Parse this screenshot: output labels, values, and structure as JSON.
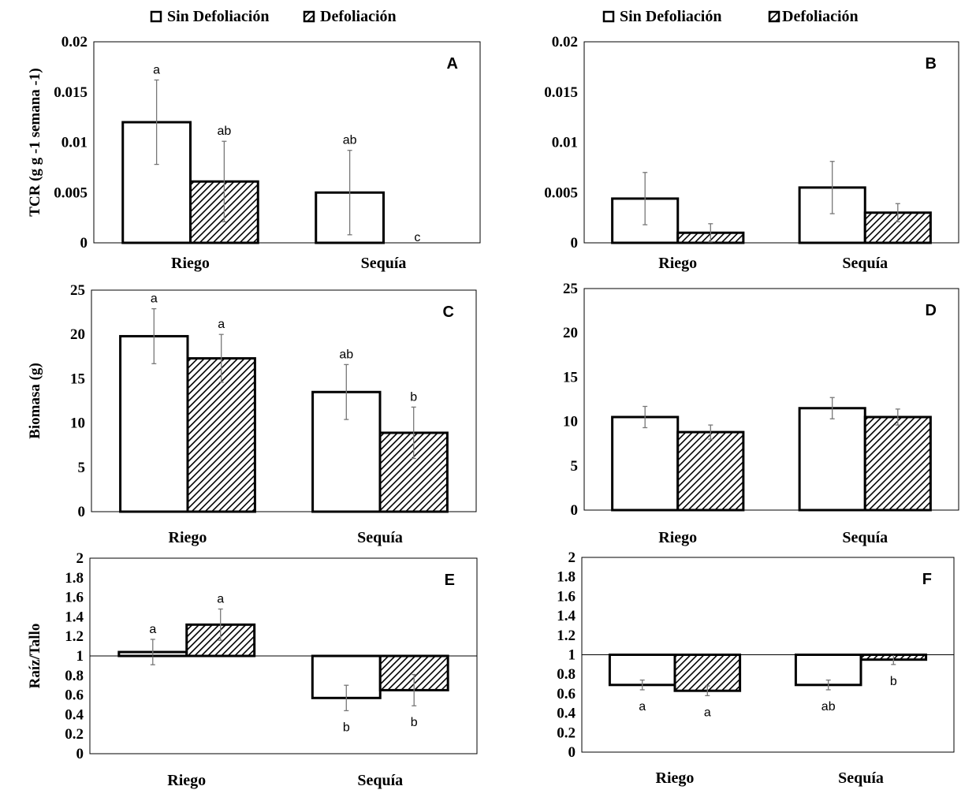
{
  "legend": {
    "series": [
      "Sin Defoliación",
      "Defoliación"
    ]
  },
  "chart_data": [
    {
      "panel": "A",
      "type": "bar",
      "categories": [
        "Riego",
        "Sequía"
      ],
      "ylabel": "TCR (g g -1 semana -1)",
      "ylim": [
        0,
        0.02
      ],
      "ticks": [
        "0",
        "0.005",
        "0.01",
        "0.015",
        "0.02"
      ],
      "baseline": 0,
      "series": [
        {
          "name": "Sin Defoliación",
          "values": [
            0.012,
            0.005
          ],
          "errors": [
            0.0042,
            0.0042
          ],
          "letters": [
            "a",
            "ab"
          ]
        },
        {
          "name": "Defoliación",
          "values": [
            0.0061,
            0
          ],
          "errors": [
            0.004,
            0
          ],
          "letters": [
            "ab",
            "c"
          ]
        }
      ]
    },
    {
      "panel": "B",
      "type": "bar",
      "categories": [
        "Riego",
        "Sequía"
      ],
      "ylabel": "",
      "ylim": [
        0,
        0.02
      ],
      "ticks": [
        "0",
        "0.005",
        "0.01",
        "0.015",
        "0.02"
      ],
      "baseline": 0,
      "series": [
        {
          "name": "Sin Defoliación",
          "values": [
            0.0044,
            0.0055
          ],
          "errors": [
            0.0026,
            0.0026
          ],
          "letters": [
            "",
            ""
          ]
        },
        {
          "name": "Defoliación",
          "values": [
            0.001,
            0.003
          ],
          "errors": [
            0.0009,
            0.0009
          ],
          "letters": [
            "",
            ""
          ]
        }
      ]
    },
    {
      "panel": "C",
      "type": "bar",
      "categories": [
        "Riego",
        "Sequía"
      ],
      "ylabel": "Biomasa (g)",
      "ylim": [
        0,
        25
      ],
      "ticks": [
        "0",
        "5",
        "10",
        "15",
        "20",
        "25"
      ],
      "baseline": 0,
      "series": [
        {
          "name": "Sin Defoliación",
          "values": [
            19.8,
            13.5
          ],
          "errors": [
            3.1,
            3.1
          ],
          "letters": [
            "a",
            "ab"
          ]
        },
        {
          "name": "Defoliación",
          "values": [
            17.3,
            8.9
          ],
          "errors": [
            2.7,
            2.9
          ],
          "letters": [
            "a",
            "b"
          ]
        }
      ]
    },
    {
      "panel": "D",
      "type": "bar",
      "categories": [
        "Riego",
        "Sequía"
      ],
      "ylabel": "",
      "ylim": [
        0,
        25
      ],
      "ticks": [
        "0",
        "5",
        "10",
        "15",
        "20",
        "25"
      ],
      "baseline": 0,
      "series": [
        {
          "name": "Sin Defoliación",
          "values": [
            10.5,
            11.5
          ],
          "errors": [
            1.2,
            1.2
          ],
          "letters": [
            "",
            ""
          ]
        },
        {
          "name": "Defoliación",
          "values": [
            8.8,
            10.5
          ],
          "errors": [
            0.8,
            0.9
          ],
          "letters": [
            "",
            ""
          ]
        }
      ]
    },
    {
      "panel": "E",
      "type": "bar",
      "categories": [
        "Riego",
        "Sequía"
      ],
      "ylabel": "Raíz/Tallo",
      "ylim": [
        0,
        2
      ],
      "ticks": [
        "0",
        "0.2",
        "0.4",
        "0.6",
        "0.8",
        "1",
        "1.2",
        "1.4",
        "1.6",
        "1.8",
        "2"
      ],
      "baseline": 1,
      "series": [
        {
          "name": "Sin Defoliación",
          "values": [
            1.04,
            0.57
          ],
          "errors": [
            0.13,
            0.13
          ],
          "letters": [
            "a",
            "b"
          ]
        },
        {
          "name": "Defoliación",
          "values": [
            1.32,
            0.65
          ],
          "errors": [
            0.16,
            0.16
          ],
          "letters": [
            "a",
            "b"
          ]
        }
      ]
    },
    {
      "panel": "F",
      "type": "bar",
      "categories": [
        "Riego",
        "Sequía"
      ],
      "ylabel": "",
      "ylim": [
        0,
        2
      ],
      "ticks": [
        "0",
        "0.2",
        "0.4",
        "0.6",
        "0.8",
        "1",
        "1.2",
        "1.4",
        "1.6",
        "1.8",
        "2"
      ],
      "baseline": 1,
      "series": [
        {
          "name": "Sin Defoliación",
          "values": [
            0.69,
            0.69
          ],
          "errors": [
            0.05,
            0.05
          ],
          "letters": [
            "a",
            "ab"
          ]
        },
        {
          "name": "Defoliación",
          "values": [
            0.63,
            0.95
          ],
          "errors": [
            0.05,
            0.05
          ],
          "letters": [
            "a",
            "b"
          ]
        }
      ]
    }
  ]
}
